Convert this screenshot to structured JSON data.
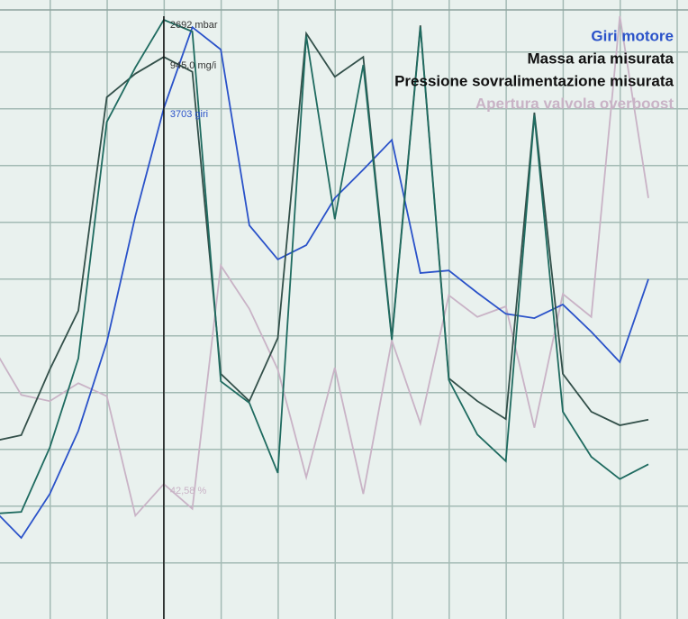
{
  "chart_data": {
    "type": "line",
    "x": [
      -2,
      -1,
      0,
      1,
      2,
      3,
      4,
      5,
      6,
      7,
      8,
      9,
      10,
      11,
      12,
      13,
      14,
      15,
      16,
      17,
      18,
      19,
      20,
      21
    ],
    "xlim": [
      -2,
      22
    ],
    "ylim": [
      0,
      100
    ],
    "legend": "top-right",
    "cursor_x": 4,
    "series": [
      {
        "name": "Giri motore",
        "color": "#2a52c9",
        "values": [
          17.8,
          13.1,
          20.2,
          30.4,
          44.7,
          65.1,
          82.5,
          95.6,
          92.0,
          63.6,
          58.1,
          60.4,
          68.0,
          72.6,
          77.4,
          55.9,
          56.3,
          52.7,
          49.3,
          48.6,
          50.8,
          46.4,
          41.5,
          54.9
        ]
      },
      {
        "name": "Massa aria misurata",
        "color": "#33504a",
        "values": [
          28.7,
          29.7,
          40.3,
          49.8,
          84.3,
          88.1,
          90.8,
          88.4,
          39.6,
          35.2,
          45.4,
          94.6,
          87.6,
          90.8,
          45.4,
          95.9,
          38.9,
          35.2,
          32.3,
          81.8,
          39.6,
          33.5,
          31.3,
          32.2
        ]
      },
      {
        "name": "Pressione sovralimentazione misurata",
        "color": "#1f6b60",
        "values": [
          17.0,
          17.3,
          27.7,
          42.1,
          80.3,
          89.1,
          96.8,
          94.9,
          38.4,
          34.9,
          23.6,
          94.2,
          64.6,
          89.5,
          45.1,
          95.6,
          38.6,
          29.8,
          25.5,
          81.4,
          33.5,
          26.2,
          22.6,
          25.0
        ]
      },
      {
        "name": "Apertura valvola overboost",
        "color": "#c9b3c6",
        "values": [
          44.0,
          36.2,
          35.2,
          38.1,
          36.0,
          16.7,
          21.8,
          17.8,
          57.1,
          50.1,
          40.3,
          22.9,
          40.6,
          20.2,
          45.0,
          31.6,
          52.3,
          48.8,
          50.5,
          30.9,
          52.5,
          48.8,
          97.4,
          68.0
        ]
      }
    ],
    "annotations": [
      "2692 mbar",
      "945,0 mg/i",
      "3703 giri",
      "42,58 %"
    ]
  }
}
